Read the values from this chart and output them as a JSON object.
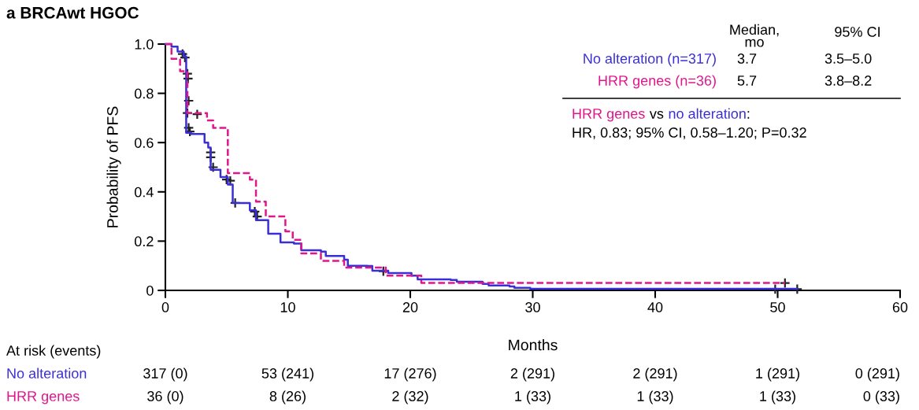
{
  "chart_data": {
    "type": "step",
    "title": "a BRCAwt HGOC",
    "xlabel": "Months",
    "ylabel": "Probability of PFS",
    "xlim": [
      0,
      60
    ],
    "ylim": [
      0,
      1.0
    ],
    "xticks": [
      0,
      10,
      20,
      30,
      40,
      50,
      60
    ],
    "yticks": [
      {
        "value": 0,
        "label": "0"
      },
      {
        "value": 0.2,
        "label": "0.2"
      },
      {
        "value": 0.4,
        "label": "0.4"
      },
      {
        "value": 0.6,
        "label": "0.6"
      },
      {
        "value": 0.8,
        "label": "0.8"
      },
      {
        "value": 1.0,
        "label": "1.0"
      }
    ],
    "grid": false,
    "legend": false,
    "series": [
      {
        "name": "No alteration",
        "color": "#3a2fd6",
        "line_style": "solid",
        "x": [
          0,
          0.5,
          1.0,
          1.5,
          1.7,
          2.1,
          3.2,
          3.5,
          3.7,
          4.5,
          5.1,
          5.5,
          6.9,
          7.4,
          8.4,
          9.4,
          10.5,
          11.1,
          12.7,
          13.1,
          14.6,
          14.9,
          16.5,
          16.9,
          18.2,
          20.1,
          20.6,
          23.3,
          23.8,
          25.9,
          26.4,
          28.1,
          28.5,
          29.8,
          51.6
        ],
        "values": [
          1.0,
          0.99,
          0.97,
          0.95,
          0.64,
          0.635,
          0.6,
          0.58,
          0.49,
          0.46,
          0.43,
          0.355,
          0.325,
          0.285,
          0.23,
          0.195,
          0.19,
          0.163,
          0.157,
          0.14,
          0.125,
          0.1,
          0.099,
          0.08,
          0.07,
          0.06,
          0.045,
          0.042,
          0.035,
          0.026,
          0.02,
          0.016,
          0.01,
          0.006,
          0.006
        ]
      },
      {
        "name": "HRR genes",
        "color": "#e0168c",
        "line_style": "dashed",
        "x": [
          0,
          0.5,
          1.2,
          1.8,
          3.4,
          3.9,
          5.1,
          6.9,
          7.4,
          8.2,
          9.8,
          10.4,
          11.1,
          12.7,
          14.6,
          18.0,
          20.9,
          50.6
        ],
        "values": [
          1.0,
          0.94,
          0.89,
          0.72,
          0.69,
          0.66,
          0.476,
          0.45,
          0.36,
          0.3,
          0.24,
          0.205,
          0.15,
          0.12,
          0.093,
          0.06,
          0.03,
          0.03
        ]
      },
      {
        "type": "scatter",
        "color": "#222222",
        "marker": "cross",
        "x": [
          1.4,
          1.5,
          1.6,
          1.8,
          1.85,
          1.9,
          1.8,
          2.6,
          1.9,
          2.0,
          3.7,
          3.7,
          3.9,
          5.0,
          5.3,
          5.7,
          7.3,
          7.5,
          17.8,
          50.6,
          49.8,
          51.6
        ],
        "values": [
          0.96,
          null,
          0.945,
          0.88,
          0.86,
          0.77,
          0.72,
          0.715,
          0.66,
          0.645,
          0.56,
          0.54,
          0.5,
          0.45,
          0.445,
          0.355,
          0.32,
          0.3,
          0.078,
          0.03,
          0.005,
          0.005
        ]
      }
    ],
    "annotations": [
      "Median,\nmo",
      "95% CI",
      "No alteration (n=317)",
      "3.7",
      "3.5–5.0",
      "HRR genes (n=36)",
      "5.7",
      "3.8–8.2",
      "HRR genes",
      "vs",
      "no alteration",
      ":",
      "HR, 0.83; 95% CI, 0.58–1.20; P=0.32",
      "At risk (events)",
      "317 (0)",
      "53 (241)",
      "17 (276)",
      "2 (291)",
      "2 (291)",
      "1 (291)",
      "0 (291)",
      "36 (0)",
      "8 (26)",
      "2 (32)",
      "1 (33)",
      "1 (33)",
      "1 (33)",
      "0 (33)"
    ]
  }
}
